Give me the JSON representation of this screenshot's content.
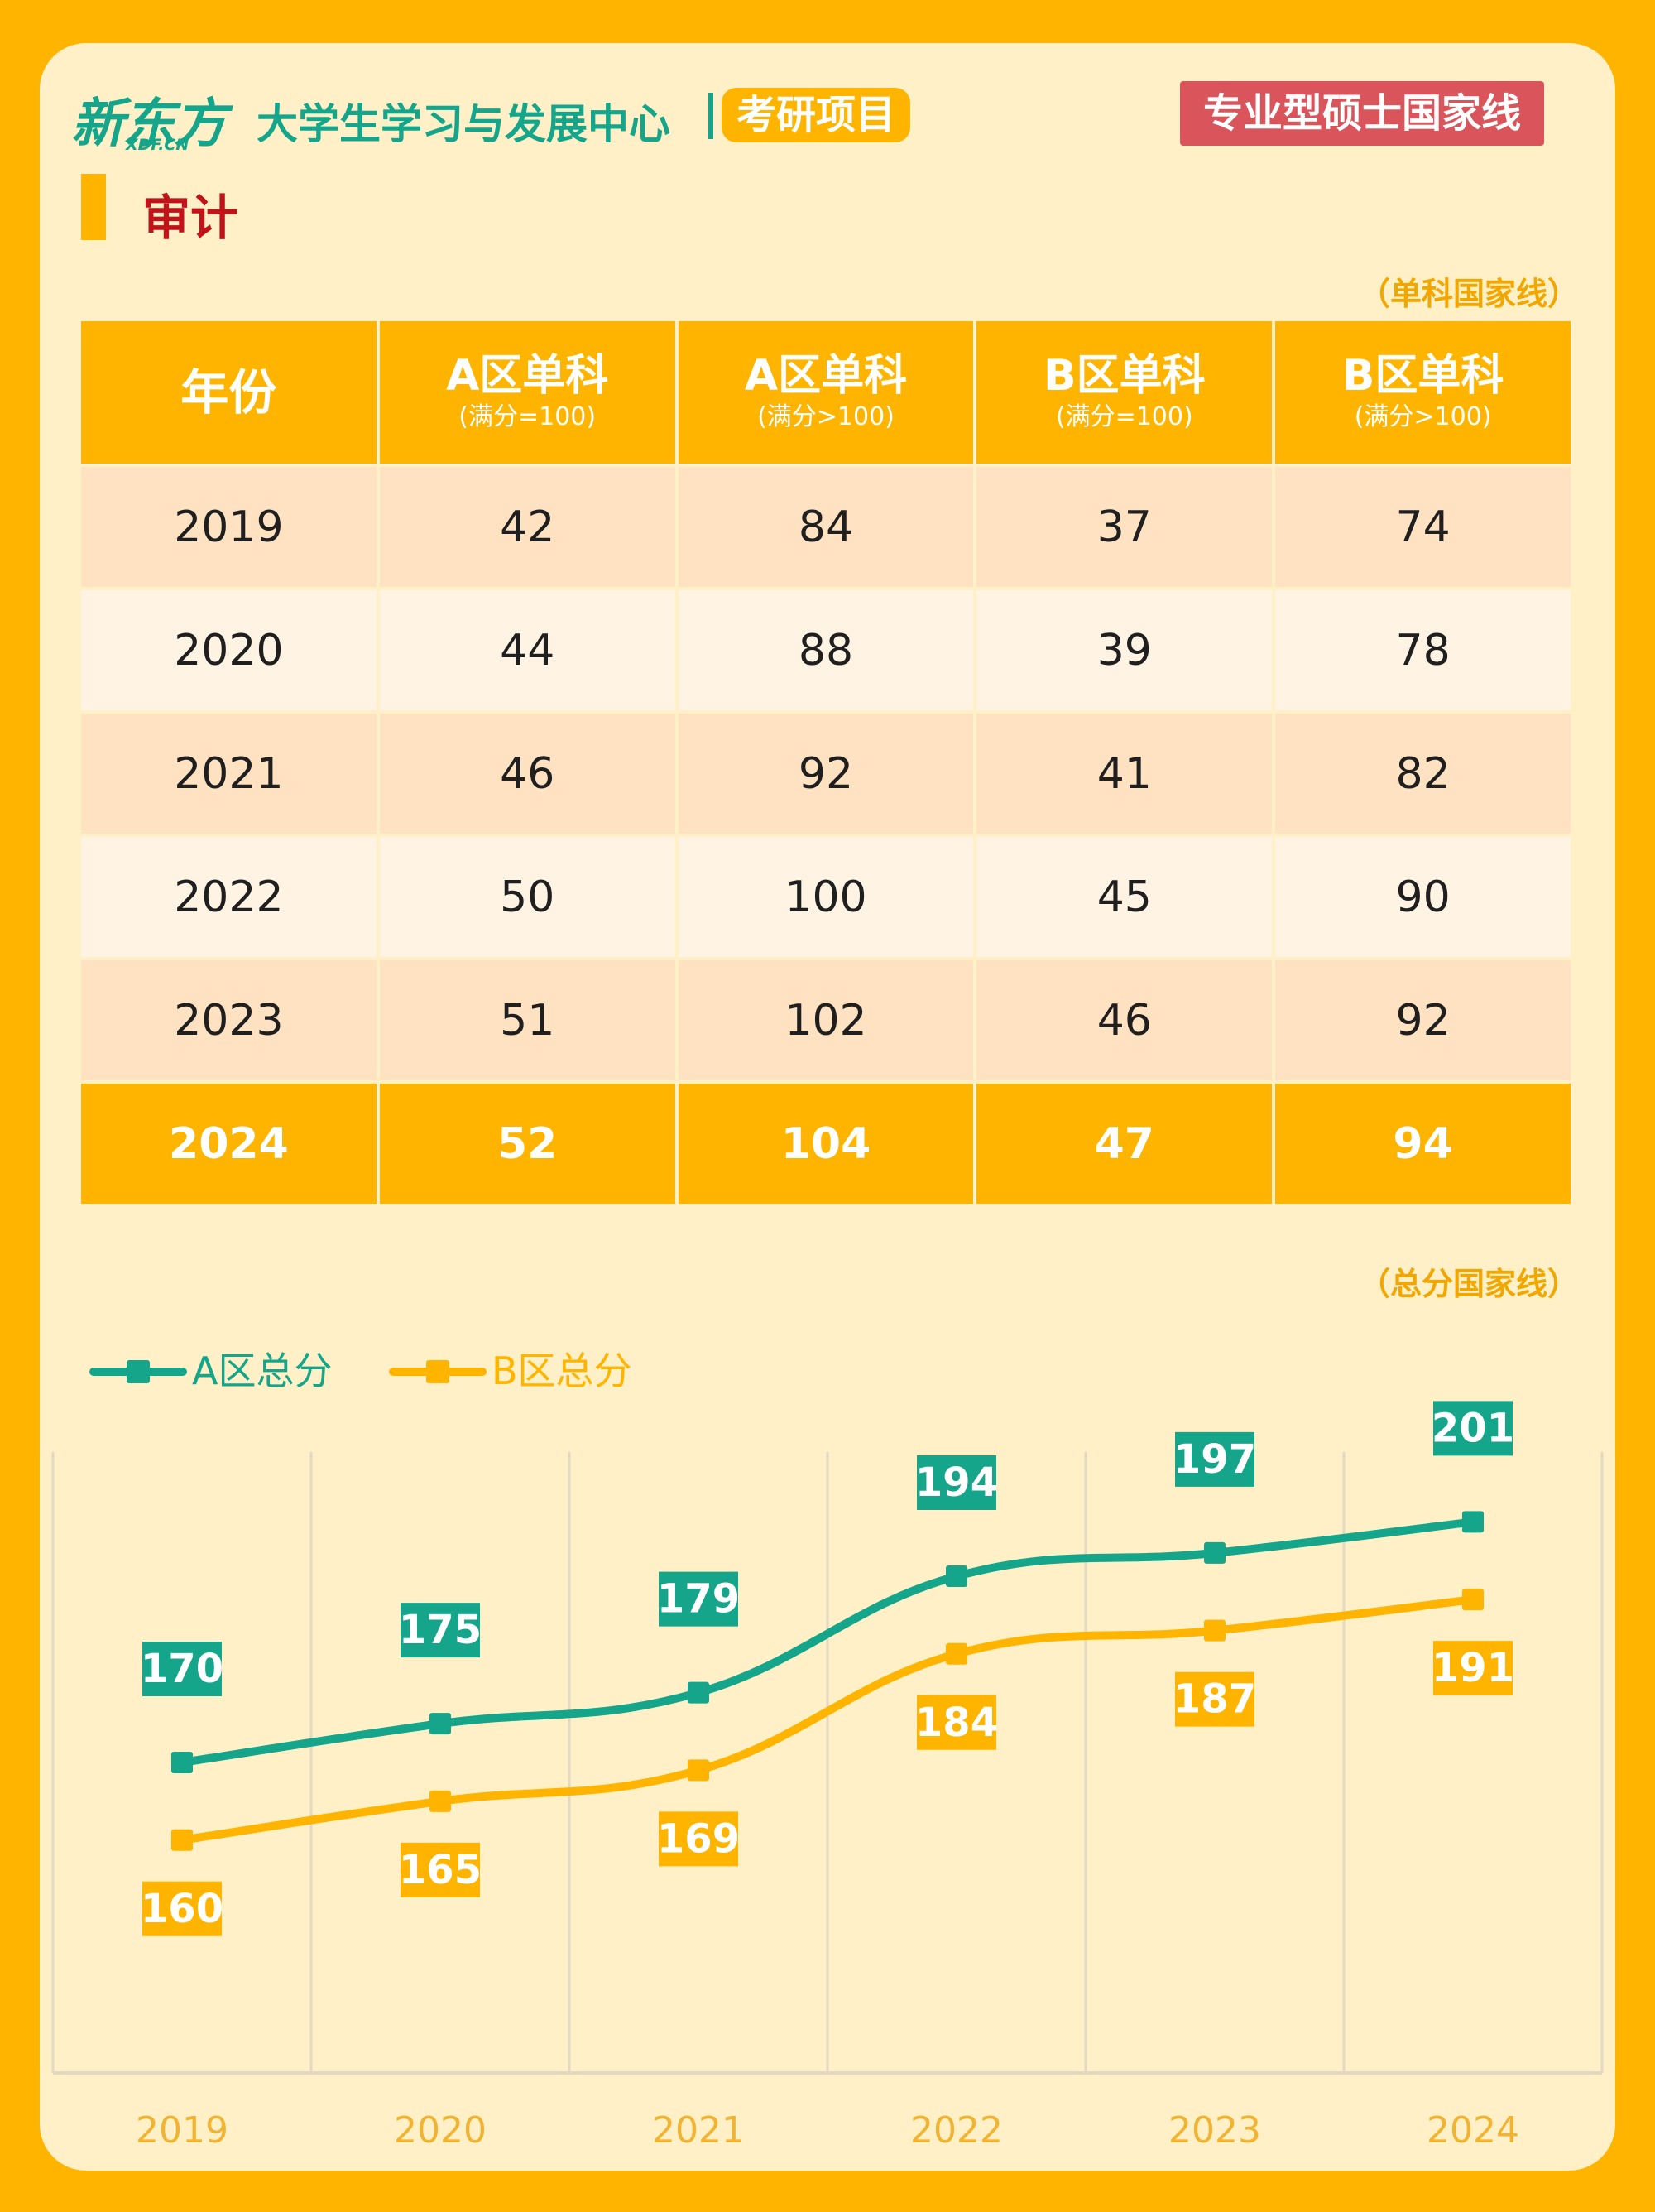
{
  "header": {
    "logo": "新东方",
    "logo_sub": "XDF.CN",
    "center_name": "大学生学习与发展中心",
    "program": "考研项目",
    "badge": "专业型硕士国家线"
  },
  "subject": "审计",
  "table_note": "（单科国家线）",
  "chart_note": "（总分国家线）",
  "table": {
    "headers": [
      {
        "main": "年份",
        "sub": ""
      },
      {
        "main": "A区单科",
        "sub": "(满分=100)"
      },
      {
        "main": "A区单科",
        "sub": "(满分>100)"
      },
      {
        "main": "B区单科",
        "sub": "(满分=100)"
      },
      {
        "main": "B区单科",
        "sub": "(满分>100)"
      }
    ],
    "rows": [
      [
        "2019",
        "42",
        "84",
        "37",
        "74"
      ],
      [
        "2020",
        "44",
        "88",
        "39",
        "78"
      ],
      [
        "2021",
        "46",
        "92",
        "41",
        "82"
      ],
      [
        "2022",
        "50",
        "100",
        "45",
        "90"
      ],
      [
        "2023",
        "51",
        "102",
        "46",
        "92"
      ],
      [
        "2024",
        "52",
        "104",
        "47",
        "94"
      ]
    ]
  },
  "colors": {
    "orange": "#FFB400",
    "green": "#14A58B",
    "red_badge": "#D9545B",
    "title_red": "#C0141A"
  },
  "chart_data": {
    "type": "line",
    "title": "总分国家线",
    "x": [
      "2019",
      "2020",
      "2021",
      "2022",
      "2023",
      "2024"
    ],
    "series": [
      {
        "name": "A区总分",
        "values": [
          170,
          175,
          179,
          194,
          197,
          201
        ],
        "color": "#14A58B",
        "label_position": "above"
      },
      {
        "name": "B区总分",
        "values": [
          160,
          165,
          169,
          184,
          187,
          191
        ],
        "color": "#FFB400",
        "label_position": "below"
      }
    ],
    "xlabel": "",
    "ylabel": "",
    "ylim": [
      130,
      210
    ],
    "grid": "vertical",
    "legend_position": "top-left"
  }
}
